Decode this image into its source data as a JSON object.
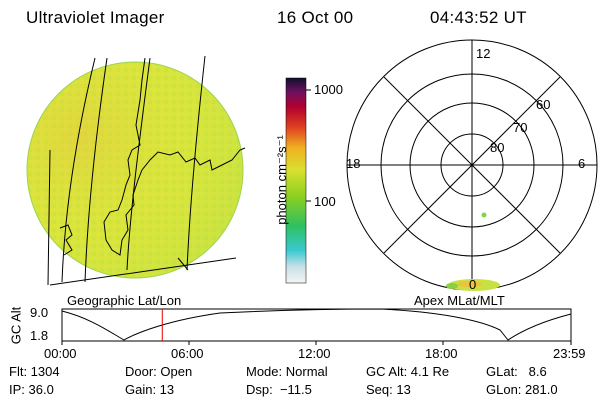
{
  "header": {
    "instrument": "Ultraviolet Imager",
    "date": "16 Oct 00",
    "time": "04:43:52 UT"
  },
  "colorbar": {
    "unit_label": "photon cm⁻²s⁻¹",
    "tick_1000": "1000",
    "tick_100": "100"
  },
  "left_map": {
    "label": "Geographic Lat/Lon"
  },
  "polar_plot": {
    "label": "Apex MLat/MLT",
    "mlt_12": "12",
    "mlt_18": "18",
    "mlt_6": "6",
    "mlt_0": "0",
    "lat_60": "60",
    "lat_70": "70",
    "lat_80": "80"
  },
  "altitude_plot": {
    "axis_label": "GC Alt",
    "tick_high": "9.0",
    "tick_low": "1.8",
    "time_ticks": [
      "00:00",
      "06:00",
      "12:00",
      "18:00",
      "23:59"
    ],
    "current_time_fraction": 0.197
  },
  "info": {
    "flt": "Flt: 1304",
    "ip": "IP: 36.0",
    "door": "Door: Open",
    "gain": "Gain: 13",
    "mode": "Mode: Normal",
    "dsp": "Dsp:  −11.5",
    "gc_alt": "GC Alt: 4.1 Re",
    "seq": "Seq: 13",
    "glat": "GLat:   8.6",
    "glon": "GLon: 281.0"
  },
  "colors": {
    "disk_base": "#d6e83a",
    "colorbar_stops": [
      "#f4f4f4",
      "#c8e0e8",
      "#38c8d0",
      "#30c060",
      "#8ad020",
      "#d8e030",
      "#f0b020",
      "#e04020",
      "#b00030",
      "#701060",
      "#101030"
    ]
  }
}
